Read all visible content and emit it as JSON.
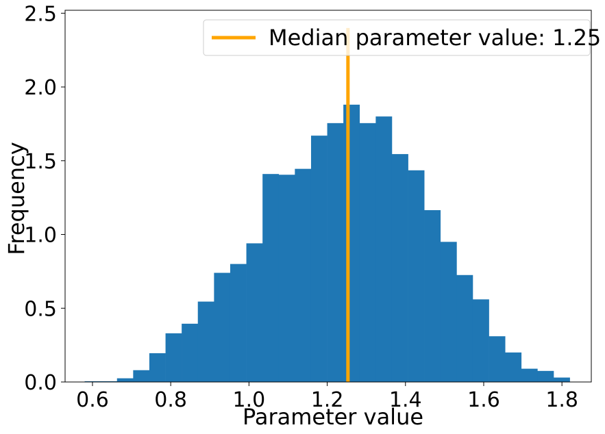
{
  "chart_data": {
    "type": "bar",
    "title": "",
    "xlabel": "Parameter value",
    "ylabel": "Frequency",
    "xlim": [
      0.53,
      1.875
    ],
    "ylim": [
      0,
      2.52
    ],
    "xticks": [
      0.6,
      0.8,
      1.0,
      1.2,
      1.4,
      1.6,
      1.8
    ],
    "xtick_labels": [
      "0.6",
      "0.8",
      "1.0",
      "1.2",
      "1.4",
      "1.6",
      "1.8"
    ],
    "yticks": [
      0.0,
      0.5,
      1.0,
      1.5,
      2.0,
      2.5
    ],
    "ytick_labels": [
      "0.0",
      "0.5",
      "1.0",
      "1.5",
      "2.0",
      "2.5"
    ],
    "bin_edges": [
      0.58,
      0.6213,
      0.6627,
      0.704,
      0.7453,
      0.7867,
      0.828,
      0.8693,
      0.9107,
      0.952,
      0.9933,
      1.0347,
      1.076,
      1.1173,
      1.1587,
      1.2,
      1.2413,
      1.2827,
      1.324,
      1.3653,
      1.4067,
      1.448,
      1.4893,
      1.5307,
      1.572,
      1.6133,
      1.6547,
      1.696,
      1.7373,
      1.7787,
      1.82
    ],
    "values": [
      0.005,
      0.005,
      0.025,
      0.08,
      0.195,
      0.33,
      0.395,
      0.545,
      0.74,
      0.8,
      0.94,
      1.41,
      1.405,
      1.445,
      1.67,
      1.755,
      1.88,
      1.755,
      1.8,
      1.545,
      1.435,
      1.165,
      0.95,
      0.725,
      0.56,
      0.31,
      0.2,
      0.09,
      0.075,
      0.03
    ],
    "bar_color": "#1f77b4",
    "median": {
      "value": 1.253,
      "ymax": 2.4,
      "color": "#ffa500",
      "legend_label": "Median parameter value: 1.25"
    },
    "legend_placement": "top-right",
    "grid": false
  }
}
